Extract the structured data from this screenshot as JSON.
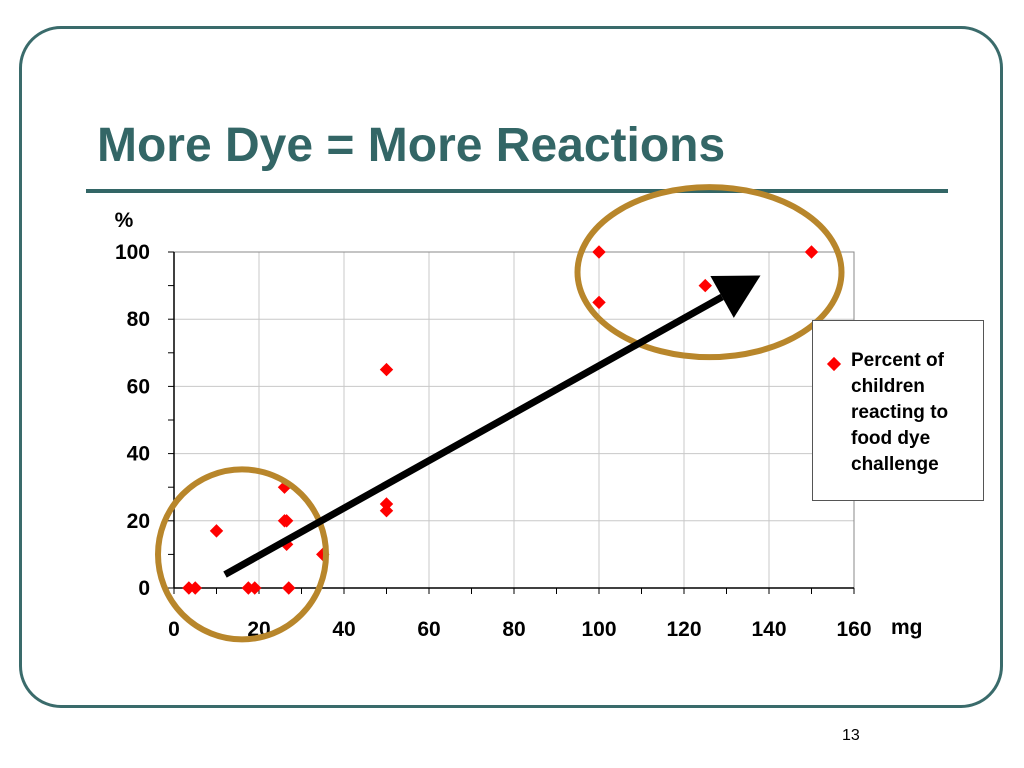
{
  "slide": {
    "title": "More Dye = More Reactions",
    "page_number": "13",
    "colors": {
      "title": "#336666",
      "frame": "#3a6b6b",
      "circle": "#b8862b",
      "marker": "#ff0000",
      "arrow": "#000000"
    }
  },
  "chart_data": {
    "type": "scatter",
    "title": "",
    "xlabel": "mg",
    "ylabel": "%",
    "xlim": [
      0,
      160
    ],
    "ylim": [
      0,
      100
    ],
    "x_ticks": [
      "0",
      "20",
      "40",
      "60",
      "80",
      "100",
      "120",
      "140",
      "160"
    ],
    "y_ticks": [
      "0",
      "20",
      "40",
      "60",
      "80",
      "100"
    ],
    "grid": true,
    "legend_position": "right",
    "series": [
      {
        "name": "Percent of children reacting to food dye challenge",
        "color": "#ff0000",
        "marker": "diamond",
        "points": [
          [
            3.5,
            0
          ],
          [
            5,
            0
          ],
          [
            10,
            17
          ],
          [
            17.5,
            0
          ],
          [
            19,
            0
          ],
          [
            26,
            30
          ],
          [
            26,
            20
          ],
          [
            26.5,
            20
          ],
          [
            26.5,
            13
          ],
          [
            27,
            0
          ],
          [
            35,
            10
          ],
          [
            50,
            65
          ],
          [
            50,
            25
          ],
          [
            50,
            23
          ],
          [
            100,
            100
          ],
          [
            100,
            85
          ],
          [
            125,
            90
          ],
          [
            150,
            100
          ]
        ]
      }
    ],
    "annotations": [
      {
        "type": "circle",
        "description": "low-dose cluster",
        "center": [
          16,
          10
        ],
        "color": "#b8862b"
      },
      {
        "type": "circle",
        "description": "high-dose cluster",
        "center": [
          126,
          94
        ],
        "color": "#b8862b"
      },
      {
        "type": "arrow",
        "from": [
          12,
          4
        ],
        "to": [
          138,
          93
        ],
        "color": "#000000"
      }
    ]
  }
}
